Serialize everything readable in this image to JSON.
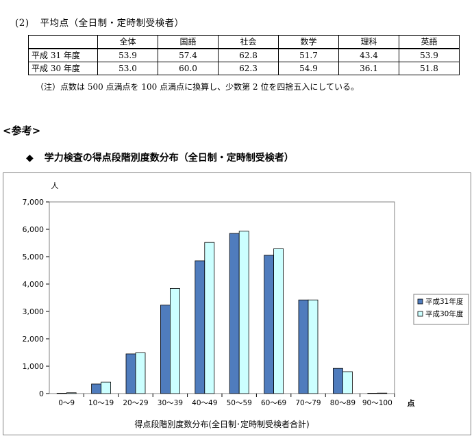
{
  "section": {
    "number": "(2)",
    "title": "平均点（全日制・定時制受検者）"
  },
  "score_table": {
    "headers": [
      "全体",
      "国語",
      "社会",
      "数学",
      "理科",
      "英語"
    ],
    "rows": [
      {
        "label": "平成 31 年度",
        "values": [
          "53.9",
          "57.4",
          "62.8",
          "51.7",
          "43.4",
          "53.9"
        ]
      },
      {
        "label": "平成 30 年度",
        "values": [
          "53.0",
          "60.0",
          "62.3",
          "54.9",
          "36.1",
          "51.8"
        ]
      }
    ]
  },
  "note": "（注）点数は 500 点満点を 100 点満点に換算し、少数第 2 位を四捨五入にしている。",
  "reference_label": "<参考>",
  "chart_heading": {
    "bullet": "◆",
    "text": "学力検査の得点段階別度数分布（全日制・定時制受検者）"
  },
  "chart_data": {
    "type": "bar",
    "title": "",
    "xlabel": "得点段階別度数分布(全日制･定時制受検者合計)",
    "ylabel": "人",
    "x_unit": "点",
    "ylim": [
      0,
      7000
    ],
    "yticks": [
      "0",
      "1,000",
      "2,000",
      "3,000",
      "4,000",
      "5,000",
      "6,000",
      "7,000"
    ],
    "categories": [
      "0～9",
      "10～19",
      "20～29",
      "30～39",
      "40～49",
      "50～59",
      "60～69",
      "70～79",
      "80～89",
      "90～100"
    ],
    "series": [
      {
        "name": "平成31年度",
        "color": "#4f7cbd",
        "values": [
          15,
          350,
          1450,
          3230,
          4850,
          5850,
          5050,
          3420,
          920,
          15
        ]
      },
      {
        "name": "平成30年度",
        "color": "#ccffff",
        "values": [
          30,
          420,
          1490,
          3840,
          5520,
          5930,
          5290,
          3420,
          800,
          20
        ]
      }
    ],
    "legend_position": "right",
    "grid": false
  }
}
